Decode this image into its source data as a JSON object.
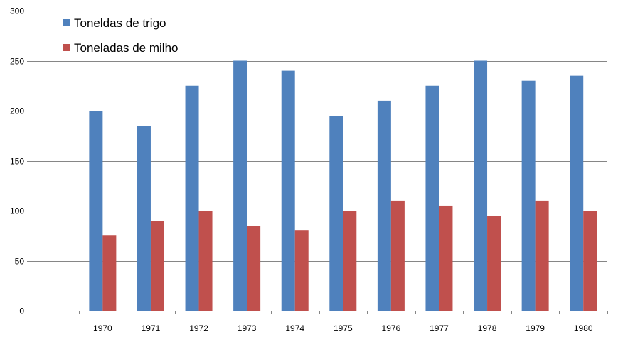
{
  "chart_data": {
    "type": "bar",
    "title": "",
    "xlabel": "",
    "ylabel": "",
    "categories": [
      "",
      "1970",
      "1971",
      "1972",
      "1973",
      "1974",
      "1975",
      "1976",
      "1977",
      "1978",
      "1979",
      "1980"
    ],
    "series": [
      {
        "name": "Toneldas de trigo",
        "color": "#4f81bd",
        "values": [
          null,
          200,
          185,
          225,
          250,
          240,
          195,
          210,
          225,
          250,
          230,
          235
        ]
      },
      {
        "name": "Toneladas de milho",
        "color": "#c0504d",
        "values": [
          null,
          75,
          90,
          100,
          85,
          80,
          100,
          110,
          105,
          95,
          110,
          100
        ]
      }
    ],
    "ylim": [
      0,
      300
    ],
    "yticks": [
      0,
      50,
      100,
      150,
      200,
      250,
      300
    ],
    "grid": true,
    "legend_position": "top-left"
  }
}
